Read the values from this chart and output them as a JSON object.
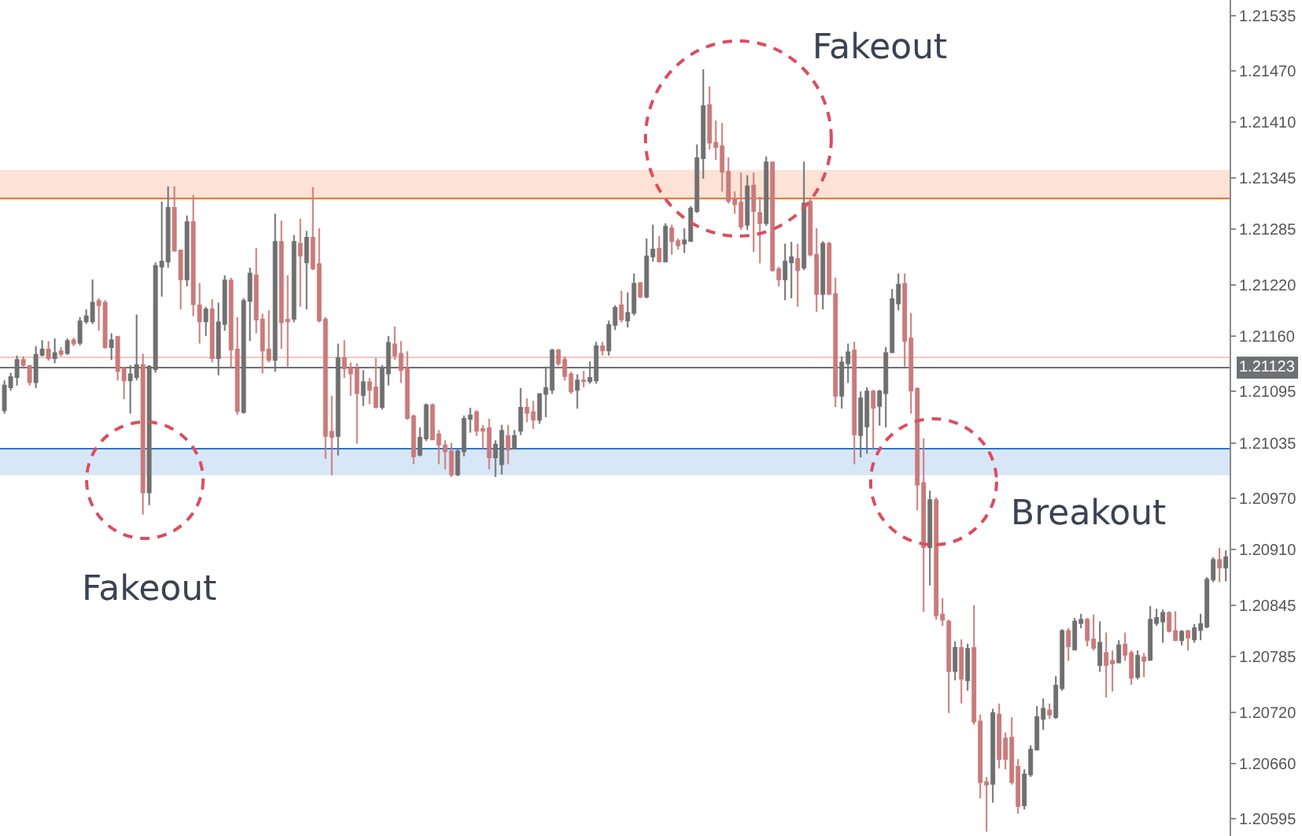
{
  "chart_data": {
    "type": "candlestick",
    "categories": [
      null,
      null,
      null,
      null,
      null,
      null,
      null,
      null,
      null,
      null,
      null,
      null,
      null,
      null,
      null,
      null,
      null,
      null,
      null,
      null,
      null,
      null,
      null,
      null,
      null,
      null,
      null,
      null,
      null,
      null,
      null,
      null,
      null,
      null,
      null,
      null,
      null,
      null,
      null,
      null,
      null,
      null,
      null,
      null,
      null,
      null,
      null,
      null,
      null,
      null,
      null,
      null,
      null,
      null,
      null,
      null,
      null,
      null,
      null,
      null,
      null,
      null,
      null,
      null,
      null,
      null,
      null,
      null,
      null,
      null,
      null,
      null,
      null,
      null,
      null,
      null,
      null,
      null,
      null,
      null,
      null,
      null,
      null,
      null,
      null,
      null,
      null,
      null,
      null,
      null,
      null,
      null,
      null,
      null,
      null,
      null,
      null,
      null,
      null,
      null,
      null,
      null,
      null,
      null,
      null,
      null,
      null,
      null,
      null,
      null,
      null,
      null,
      null,
      null,
      null,
      null,
      null,
      null,
      null,
      null,
      null,
      null,
      null,
      null,
      null,
      null,
      null,
      null,
      null,
      null,
      null,
      null,
      null,
      null,
      null,
      null,
      null,
      null,
      null,
      null,
      null,
      null,
      null,
      null,
      null,
      null,
      null,
      null,
      null,
      null,
      null,
      null,
      null,
      null,
      null,
      null,
      null,
      null,
      null,
      null,
      null,
      null,
      null,
      null,
      null,
      null,
      null,
      null,
      null,
      null,
      null,
      null,
      null,
      null,
      null,
      null,
      null,
      null,
      null,
      null,
      null,
      null,
      null,
      null,
      null,
      null,
      null,
      null,
      null,
      null,
      null,
      null,
      null,
      null,
      null
    ],
    "ohlc": [
      [
        1.21073,
        1.21108,
        1.21069,
        1.21102
      ],
      [
        1.211,
        1.21117,
        1.21096,
        1.21112
      ],
      [
        1.21112,
        1.21137,
        1.21102,
        1.21132
      ],
      [
        1.21132,
        1.21136,
        1.21123,
        1.21126
      ],
      [
        1.21125,
        1.21126,
        1.21102,
        1.21106
      ],
      [
        1.21106,
        1.21148,
        1.21099,
        1.21138
      ],
      [
        1.21138,
        1.21155,
        1.21136,
        1.21144
      ],
      [
        1.21144,
        1.21154,
        1.21131,
        1.21134
      ],
      [
        1.21134,
        1.21157,
        1.21128,
        1.2114
      ],
      [
        1.21142,
        1.21147,
        1.21136,
        1.21139
      ],
      [
        1.2114,
        1.21157,
        1.21138,
        1.21154
      ],
      [
        1.21155,
        1.21158,
        1.21148,
        1.21151
      ],
      [
        1.21152,
        1.21182,
        1.21149,
        1.21177
      ],
      [
        1.21177,
        1.21191,
        1.21174,
        1.21183
      ],
      [
        1.21177,
        1.21226,
        1.21174,
        1.21199
      ],
      [
        1.21201,
        1.21204,
        1.21166,
        1.21196
      ],
      [
        1.21199,
        1.21202,
        1.21145,
        1.21147
      ],
      [
        1.21147,
        1.21163,
        1.21132,
        1.21155
      ],
      [
        1.21159,
        1.2116,
        1.21108,
        1.21119
      ],
      [
        1.21122,
        1.21124,
        1.21086,
        1.21108
      ],
      [
        1.21108,
        1.21126,
        1.21069,
        1.21115
      ],
      [
        1.21112,
        1.21185,
        1.21108,
        1.21126
      ],
      [
        1.21126,
        1.21139,
        1.20951,
        1.20977
      ],
      [
        1.20977,
        1.21126,
        1.20962,
        1.21124
      ],
      [
        1.21121,
        1.21246,
        1.21117,
        1.21242
      ],
      [
        1.21241,
        1.21317,
        1.21206,
        1.21247
      ],
      [
        1.21247,
        1.21335,
        1.2124,
        1.2131
      ],
      [
        1.2131,
        1.21335,
        1.21258,
        1.2126
      ],
      [
        1.2126,
        1.21261,
        1.21191,
        1.21226
      ],
      [
        1.21226,
        1.21301,
        1.21218,
        1.21293
      ],
      [
        1.21293,
        1.21325,
        1.21183,
        1.21197
      ],
      [
        1.21196,
        1.21222,
        1.21151,
        1.21177
      ],
      [
        1.21177,
        1.21194,
        1.2116,
        1.21191
      ],
      [
        1.21191,
        1.21203,
        1.21129,
        1.21134
      ],
      [
        1.21134,
        1.21199,
        1.21114,
        1.21176
      ],
      [
        1.21174,
        1.21231,
        1.21166,
        1.21225
      ],
      [
        1.21225,
        1.21228,
        1.21123,
        1.21144
      ],
      [
        1.21144,
        1.21182,
        1.21068,
        1.21072
      ],
      [
        1.21071,
        1.21204,
        1.21069,
        1.21201
      ],
      [
        1.21201,
        1.2124,
        1.21154,
        1.21233
      ],
      [
        1.21231,
        1.21263,
        1.21163,
        1.21179
      ],
      [
        1.21179,
        1.21186,
        1.21116,
        1.21143
      ],
      [
        1.21144,
        1.2119,
        1.21129,
        1.21132
      ],
      [
        1.21132,
        1.21303,
        1.21118,
        1.2127
      ],
      [
        1.2127,
        1.21295,
        1.21145,
        1.21176
      ],
      [
        1.21179,
        1.21231,
        1.21124,
        1.21177
      ],
      [
        1.2118,
        1.21278,
        1.21176,
        1.2127
      ],
      [
        1.21268,
        1.21297,
        1.21194,
        1.21254
      ],
      [
        1.21246,
        1.21283,
        1.21191,
        1.21275
      ],
      [
        1.21275,
        1.21334,
        1.21237,
        1.21239
      ],
      [
        1.21244,
        1.21286,
        1.21176,
        1.21178
      ],
      [
        1.21179,
        1.21182,
        1.21016,
        1.21043
      ],
      [
        1.21048,
        1.2109,
        1.20997,
        1.21042
      ],
      [
        1.21043,
        1.21151,
        1.2102,
        1.21134
      ],
      [
        1.21134,
        1.21155,
        1.21111,
        1.21122
      ],
      [
        1.21122,
        1.21129,
        1.2109,
        1.21116
      ],
      [
        1.21121,
        1.21128,
        1.21034,
        1.21093
      ],
      [
        1.21091,
        1.2112,
        1.21078,
        1.21106
      ],
      [
        1.21106,
        1.21111,
        1.2108,
        1.21097
      ],
      [
        1.211,
        1.21134,
        1.21075,
        1.21077
      ],
      [
        1.21077,
        1.21126,
        1.21074,
        1.21121
      ],
      [
        1.21116,
        1.2116,
        1.21102,
        1.21152
      ],
      [
        1.2115,
        1.21171,
        1.21132,
        1.21137
      ],
      [
        1.21139,
        1.21154,
        1.21105,
        1.2112
      ],
      [
        1.21122,
        1.21142,
        1.21062,
        1.21064
      ],
      [
        1.21066,
        1.21068,
        1.2101,
        1.21019
      ],
      [
        1.21021,
        1.21053,
        1.21019,
        1.21041
      ],
      [
        1.2104,
        1.21081,
        1.21037,
        1.21079
      ],
      [
        1.21079,
        1.21081,
        1.21038,
        1.21039
      ],
      [
        1.21045,
        1.2105,
        1.2101,
        1.21033
      ],
      [
        1.21032,
        1.21038,
        1.21004,
        1.21025
      ],
      [
        1.21025,
        1.21035,
        1.20995,
        1.20998
      ],
      [
        1.20998,
        1.21028,
        1.20996,
        1.21025
      ],
      [
        1.21025,
        1.21067,
        1.21019,
        1.21063
      ],
      [
        1.21063,
        1.21076,
        1.21047,
        1.21067
      ],
      [
        1.21071,
        1.21073,
        1.21043,
        1.21049
      ],
      [
        1.21051,
        1.21056,
        1.21028,
        1.21049
      ],
      [
        1.21052,
        1.21063,
        1.21004,
        1.21018
      ],
      [
        1.21018,
        1.21038,
        1.20995,
        1.21033
      ],
      [
        1.2101,
        1.21056,
        1.20998,
        1.21049
      ],
      [
        1.21043,
        1.21056,
        1.2101,
        1.21027
      ],
      [
        1.21028,
        1.2105,
        1.21027,
        1.21043
      ],
      [
        1.21049,
        1.21099,
        1.21044,
        1.21076
      ],
      [
        1.21076,
        1.21087,
        1.21059,
        1.2107
      ],
      [
        1.21071,
        1.21084,
        1.21051,
        1.21062
      ],
      [
        1.21062,
        1.21093,
        1.21057,
        1.21092
      ],
      [
        1.21092,
        1.21124,
        1.21065,
        1.21099
      ],
      [
        1.21097,
        1.21145,
        1.21092,
        1.21143
      ],
      [
        1.21143,
        1.21145,
        1.21125,
        1.21128
      ],
      [
        1.21132,
        1.21136,
        1.21108,
        1.21113
      ],
      [
        1.21115,
        1.21118,
        1.21092,
        1.21095
      ],
      [
        1.21097,
        1.21115,
        1.21075,
        1.21108
      ],
      [
        1.21108,
        1.21119,
        1.211,
        1.21107
      ],
      [
        1.21107,
        1.2113,
        1.21104,
        1.21111
      ],
      [
        1.21108,
        1.21153,
        1.21104,
        1.21148
      ],
      [
        1.21148,
        1.21153,
        1.21137,
        1.21143
      ],
      [
        1.21143,
        1.21178,
        1.21137,
        1.21173
      ],
      [
        1.21173,
        1.21196,
        1.21167,
        1.21193
      ],
      [
        1.21196,
        1.21213,
        1.21176,
        1.21179
      ],
      [
        1.21178,
        1.21211,
        1.2117,
        1.21187
      ],
      [
        1.21187,
        1.21233,
        1.21184,
        1.21221
      ],
      [
        1.21222,
        1.21223,
        1.21204,
        1.21206
      ],
      [
        1.21206,
        1.21274,
        1.21204,
        1.21253
      ],
      [
        1.21253,
        1.2129,
        1.21247,
        1.21261
      ],
      [
        1.21262,
        1.21277,
        1.21246,
        1.21247
      ],
      [
        1.21247,
        1.21292,
        1.21246,
        1.21288
      ],
      [
        1.21286,
        1.2129,
        1.21255,
        1.21271
      ],
      [
        1.21271,
        1.21274,
        1.21261,
        1.21266
      ],
      [
        1.21268,
        1.21286,
        1.21257,
        1.21272
      ],
      [
        1.21271,
        1.21312,
        1.2127,
        1.21309
      ],
      [
        1.21306,
        1.21384,
        1.21304,
        1.21368
      ],
      [
        1.21368,
        1.21472,
        1.21344,
        1.21429
      ],
      [
        1.2143,
        1.21452,
        1.21378,
        1.21386
      ],
      [
        1.21386,
        1.21412,
        1.21366,
        1.21381
      ],
      [
        1.21382,
        1.21409,
        1.21329,
        1.21352
      ],
      [
        1.21352,
        1.21369,
        1.21315,
        1.21318
      ],
      [
        1.2132,
        1.21329,
        1.21303,
        1.21314
      ],
      [
        1.21316,
        1.21351,
        1.21284,
        1.21288
      ],
      [
        1.2129,
        1.21348,
        1.21284,
        1.21335
      ],
      [
        1.21336,
        1.21351,
        1.21258,
        1.21306
      ],
      [
        1.21304,
        1.21323,
        1.21245,
        1.21292
      ],
      [
        1.21292,
        1.2137,
        1.21289,
        1.21363
      ],
      [
        1.21363,
        1.21364,
        1.21235,
        1.21237
      ],
      [
        1.21238,
        1.21241,
        1.21218,
        1.21226
      ],
      [
        1.21226,
        1.21268,
        1.21202,
        1.21247
      ],
      [
        1.21246,
        1.2127,
        1.21204,
        1.21252
      ],
      [
        1.2125,
        1.21268,
        1.21194,
        1.21237
      ],
      [
        1.2124,
        1.21364,
        1.21237,
        1.21315
      ],
      [
        1.21317,
        1.2132,
        1.21253,
        1.21255
      ],
      [
        1.21255,
        1.21286,
        1.21188,
        1.21209
      ],
      [
        1.21209,
        1.21271,
        1.21191,
        1.21268
      ],
      [
        1.21268,
        1.2127,
        1.21208,
        1.21209
      ],
      [
        1.21209,
        1.21228,
        1.21077,
        1.2109
      ],
      [
        1.2109,
        1.21136,
        1.21075,
        1.21129
      ],
      [
        1.21128,
        1.21151,
        1.21105,
        1.21141
      ],
      [
        1.21143,
        1.21153,
        1.2101,
        1.21045
      ],
      [
        1.21044,
        1.21095,
        1.21018,
        1.21087
      ],
      [
        1.21054,
        1.211,
        1.21022,
        1.21095
      ],
      [
        1.21095,
        1.21097,
        1.21028,
        1.21076
      ],
      [
        1.21078,
        1.21097,
        1.21055,
        1.21095
      ],
      [
        1.21093,
        1.21147,
        1.21053,
        1.2114
      ],
      [
        1.21141,
        1.21215,
        1.2114,
        1.21203
      ],
      [
        1.21198,
        1.21233,
        1.2119,
        1.2122
      ],
      [
        1.21221,
        1.21233,
        1.21124,
        1.21154
      ],
      [
        1.21157,
        1.21187,
        1.21069,
        1.21096
      ],
      [
        1.21098,
        1.211,
        1.20956,
        1.20986
      ],
      [
        1.20988,
        1.2104,
        1.20837,
        1.20913
      ],
      [
        1.20913,
        1.20979,
        1.20868,
        1.20968
      ],
      [
        1.20968,
        1.20971,
        1.20828,
        1.20833
      ],
      [
        1.20834,
        1.20853,
        1.20821,
        1.20828
      ],
      [
        1.20826,
        1.20828,
        1.20719,
        1.20768
      ],
      [
        1.20768,
        1.20803,
        1.20757,
        1.20795
      ],
      [
        1.20795,
        1.20805,
        1.2073,
        1.20759
      ],
      [
        1.20757,
        1.208,
        1.20745,
        1.20794
      ],
      [
        1.20795,
        1.20845,
        1.20705,
        1.20709
      ],
      [
        1.20709,
        1.20717,
        1.20619,
        1.20638
      ],
      [
        1.20638,
        1.20644,
        1.2058,
        1.20635
      ],
      [
        1.20636,
        1.20724,
        1.20614,
        1.20719
      ],
      [
        1.20717,
        1.2073,
        1.20654,
        1.20665
      ],
      [
        1.20689,
        1.20696,
        1.20653,
        1.20665
      ],
      [
        1.2069,
        1.20714,
        1.20635,
        1.20638
      ],
      [
        1.20656,
        1.20665,
        1.20601,
        1.2061
      ],
      [
        1.20611,
        1.20653,
        1.20606,
        1.20647
      ],
      [
        1.20647,
        1.20681,
        1.20644,
        1.20676
      ],
      [
        1.20676,
        1.20727,
        1.20675,
        1.20714
      ],
      [
        1.20712,
        1.20736,
        1.20699,
        1.20724
      ],
      [
        1.20722,
        1.2073,
        1.20712,
        1.20717
      ],
      [
        1.20714,
        1.20762,
        1.20712,
        1.20751
      ],
      [
        1.20748,
        1.20817,
        1.20745,
        1.20815
      ],
      [
        1.20815,
        1.20818,
        1.2078,
        1.20797
      ],
      [
        1.20793,
        1.2083,
        1.20792,
        1.20826
      ],
      [
        1.20824,
        1.20835,
        1.20818,
        1.20828
      ],
      [
        1.20828,
        1.2083,
        1.20797,
        1.20804
      ],
      [
        1.20805,
        1.20834,
        1.20792,
        1.20795
      ],
      [
        1.20775,
        1.20826,
        1.20767,
        1.20801
      ],
      [
        1.20789,
        1.20813,
        1.20737,
        1.20775
      ],
      [
        1.2078,
        1.20792,
        1.20744,
        1.20777
      ],
      [
        1.20778,
        1.20804,
        1.20777,
        1.20798
      ],
      [
        1.20799,
        1.20813,
        1.2078,
        1.20787
      ],
      [
        1.20789,
        1.20792,
        1.20752,
        1.2076
      ],
      [
        1.20761,
        1.20792,
        1.20758,
        1.20786
      ],
      [
        1.20784,
        1.20789,
        1.20761,
        1.2078
      ],
      [
        1.20781,
        1.20844,
        1.2078,
        1.20828
      ],
      [
        1.20824,
        1.20841,
        1.20821,
        1.2083
      ],
      [
        1.20826,
        1.2084,
        1.20801,
        1.20836
      ],
      [
        1.20836,
        1.20838,
        1.20813,
        1.20815
      ],
      [
        1.20815,
        1.20838,
        1.20803,
        1.20804
      ],
      [
        1.20804,
        1.20816,
        1.20798,
        1.20814
      ],
      [
        1.20815,
        1.20816,
        1.20792,
        1.20807
      ],
      [
        1.20805,
        1.20823,
        1.20801,
        1.20818
      ],
      [
        1.20816,
        1.20835,
        1.20804,
        1.20823
      ],
      [
        1.2082,
        1.20878,
        1.20818,
        1.20875
      ],
      [
        1.20875,
        1.20901,
        1.20872,
        1.20898
      ],
      [
        1.20898,
        1.20912,
        1.20872,
        1.20889
      ],
      [
        1.20889,
        1.20909,
        1.20873,
        1.20901
      ]
    ],
    "colors": [
      "#707070",
      "#707070",
      "#707070",
      "#c97b7b",
      "#c97b7b",
      "#707070",
      "#707070",
      "#c97b7b",
      "#707070",
      "#c97b7b",
      "#707070",
      "#c97b7b",
      "#707070",
      "#707070",
      "#707070",
      "#c97b7b",
      "#c97b7b",
      "#707070",
      "#c97b7b",
      "#c97b7b",
      "#707070",
      "#707070",
      "#c97b7b",
      "#707070",
      "#707070",
      "#707070",
      "#707070",
      "#c97b7b",
      "#c97b7b",
      "#707070",
      "#c97b7b",
      "#c97b7b",
      "#707070",
      "#c97b7b",
      "#707070",
      "#707070",
      "#c97b7b",
      "#c97b7b",
      "#707070",
      "#707070",
      "#c97b7b",
      "#c97b7b",
      "#c97b7b",
      "#707070",
      "#c97b7b",
      "#c97b7b",
      "#707070",
      "#c97b7b",
      "#707070",
      "#c97b7b",
      "#c97b7b",
      "#c97b7b",
      "#c97b7b",
      "#707070",
      "#c97b7b",
      "#c97b7b",
      "#c97b7b",
      "#707070",
      "#c97b7b",
      "#c97b7b",
      "#707070",
      "#707070",
      "#c97b7b",
      "#c97b7b",
      "#c97b7b",
      "#c97b7b",
      "#707070",
      "#707070",
      "#c97b7b",
      "#c97b7b",
      "#c97b7b",
      "#c97b7b",
      "#707070",
      "#707070",
      "#707070",
      "#c97b7b",
      "#c97b7b",
      "#c97b7b",
      "#707070",
      "#707070",
      "#c97b7b",
      "#707070",
      "#707070",
      "#c97b7b",
      "#c97b7b",
      "#707070",
      "#707070",
      "#707070",
      "#c97b7b",
      "#c97b7b",
      "#c97b7b",
      "#707070",
      "#c97b7b",
      "#707070",
      "#707070",
      "#c97b7b",
      "#707070",
      "#707070",
      "#c97b7b",
      "#707070",
      "#707070",
      "#c97b7b",
      "#707070",
      "#707070",
      "#c97b7b",
      "#707070",
      "#c97b7b",
      "#c97b7b",
      "#707070",
      "#707070",
      "#707070",
      "#707070",
      "#c97b7b",
      "#c97b7b",
      "#c97b7b",
      "#c97b7b",
      "#c97b7b",
      "#c97b7b",
      "#707070",
      "#c97b7b",
      "#c97b7b",
      "#707070",
      "#c97b7b",
      "#c97b7b",
      "#707070",
      "#707070",
      "#c97b7b",
      "#707070",
      "#c97b7b",
      "#c97b7b",
      "#707070",
      "#c97b7b",
      "#c97b7b",
      "#707070",
      "#707070",
      "#c97b7b",
      "#707070",
      "#707070",
      "#c97b7b",
      "#707070",
      "#707070",
      "#707070",
      "#707070",
      "#c97b7b",
      "#c97b7b",
      "#c97b7b",
      "#c97b7b",
      "#707070",
      "#c97b7b",
      "#c97b7b",
      "#c97b7b",
      "#707070",
      "#c97b7b",
      "#707070",
      "#c97b7b",
      "#c97b7b",
      "#c97b7b",
      "#707070",
      "#c97b7b",
      "#c97b7b",
      "#c97b7b",
      "#c97b7b",
      "#707070",
      "#707070",
      "#707070",
      "#707070",
      "#c97b7b",
      "#707070",
      "#707070",
      "#c97b7b",
      "#707070",
      "#707070",
      "#c97b7b",
      "#c97b7b",
      "#707070",
      "#c97b7b",
      "#c97b7b",
      "#707070",
      "#c97b7b",
      "#c97b7b",
      "#707070",
      "#c97b7b",
      "#707070",
      "#707070",
      "#707070",
      "#c97b7b",
      "#c97b7b",
      "#707070",
      "#c97b7b",
      "#707070",
      "#707070",
      "#707070",
      "#707070",
      "#c97b7b",
      "#707070"
    ],
    "ylim": [
      1.20575,
      1.21553
    ],
    "yticks": [
      1.20595,
      {
        "value": 1.2066,
        "label": "1.20660"
      },
      {
        "value": 1.2072,
        "label": "1.20720"
      },
      1.20785,
      1.20845,
      {
        "value": 1.2091,
        "label": "1.20910"
      },
      {
        "value": 1.2097,
        "label": "1.20970"
      },
      1.21035,
      1.21095,
      {
        "value": 1.2116,
        "label": "1.21160"
      },
      {
        "value": 1.2122,
        "label": "1.21220"
      },
      1.21285,
      1.21345,
      {
        "value": 1.2141,
        "label": "1.21410"
      },
      {
        "value": 1.2147,
        "label": "1.21470"
      },
      1.21535
    ],
    "tick_labels": "y",
    "bands": [
      {
        "axis": "y",
        "from": 1.21319,
        "to": 1.21354,
        "color": "#fde2d6"
      },
      {
        "axis": "y",
        "from": 1.20997,
        "to": 1.21028,
        "color": "#d8e7f8"
      }
    ],
    "ref_lines": [
      {
        "axis": "y",
        "value": 1.21321,
        "color": "#ef7a33"
      },
      {
        "axis": "y",
        "value": 1.21028,
        "color": "#2f74c8"
      },
      {
        "axis": "y",
        "value": 1.21135,
        "color": "#f4c6c0"
      },
      {
        "axis": "y",
        "value": 1.21123,
        "label": "1.21123",
        "color": "#6f7072"
      }
    ],
    "annotations": [
      "Fakeout",
      "Fakeout",
      "Breakout"
    ]
  }
}
